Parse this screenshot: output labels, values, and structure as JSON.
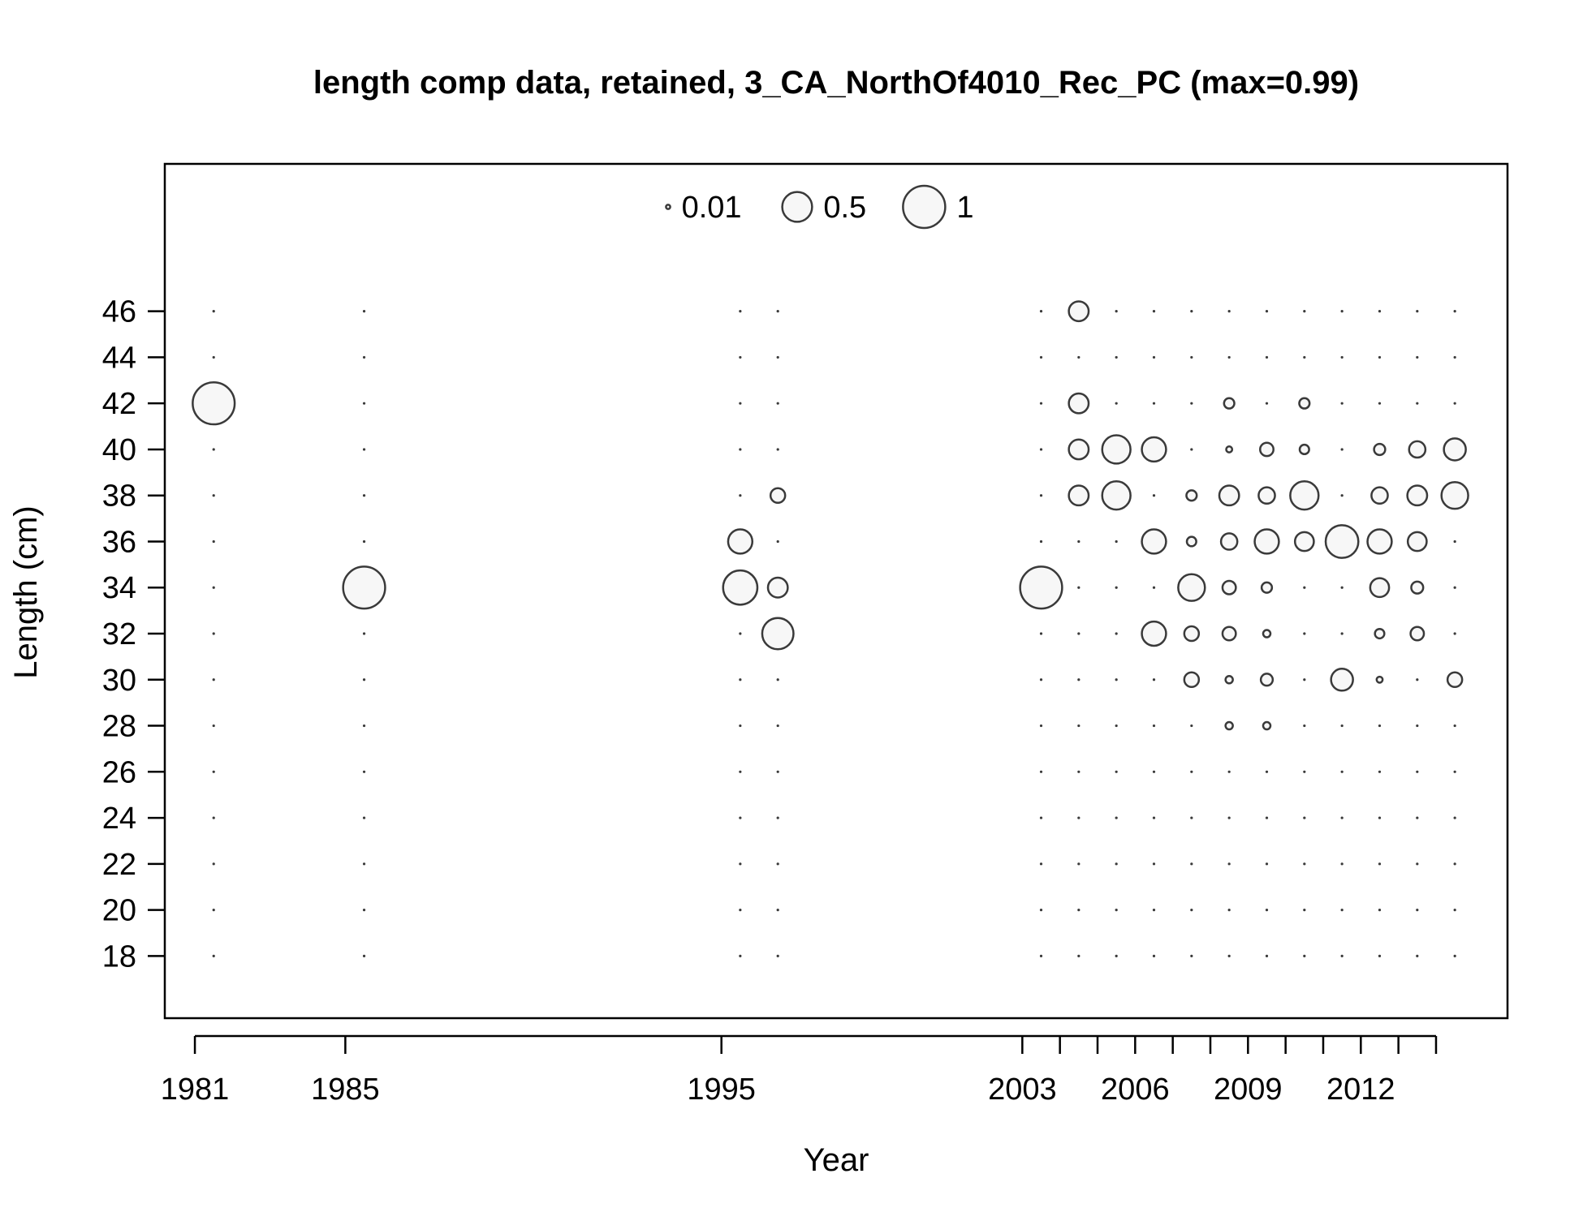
{
  "chart_data": {
    "type": "bubble",
    "title": "length comp data, retained, 3_CA_NorthOf4010_Rec_PC (max=0.99)",
    "xlabel": "Year",
    "ylabel": "Length (cm)",
    "x_tick_labels": [
      "1981",
      "1985",
      "1995",
      "2003",
      "2006",
      "2009",
      "2012"
    ],
    "x_minor_tick_years": [
      1981,
      1985,
      1995,
      2003,
      2004,
      2005,
      2006,
      2007,
      2008,
      2009,
      2010,
      2011,
      2012,
      2013,
      2014
    ],
    "y_tick_labels": [
      "18",
      "20",
      "22",
      "24",
      "26",
      "28",
      "30",
      "32",
      "34",
      "36",
      "38",
      "40",
      "42",
      "44",
      "46"
    ],
    "xlim": [
      1980.2,
      2015.9
    ],
    "ylim": [
      15.3,
      52.4
    ],
    "legend": {
      "position": "top",
      "entries": [
        {
          "label": "0.01",
          "value": 0.01
        },
        {
          "label": "0.5",
          "value": 0.5
        },
        {
          "label": "1",
          "value": 1
        }
      ]
    },
    "bins": [
      18,
      20,
      22,
      24,
      26,
      28,
      30,
      32,
      34,
      36,
      38,
      40,
      42,
      44,
      46
    ],
    "x": [
      1981.5,
      1985.5,
      1995.5,
      1996.5,
      2003.5,
      2004.5,
      2005.5,
      2006.5,
      2007.5,
      2008.5,
      2009.5,
      2010.5,
      2011.5,
      2012.5,
      2013.5,
      2014.5
    ],
    "series": [
      {
        "year": 1981.5,
        "values": {
          "42": 0.99
        }
      },
      {
        "year": 1985.5,
        "values": {
          "34": 0.99
        }
      },
      {
        "year": 1995.5,
        "values": {
          "36": 0.33,
          "34": 0.66
        }
      },
      {
        "year": 1996.5,
        "values": {
          "38": 0.12,
          "34": 0.22,
          "32": 0.55
        }
      },
      {
        "year": 2003.5,
        "values": {
          "34": 0.99
        }
      },
      {
        "year": 2004.5,
        "values": {
          "46": 0.22,
          "42": 0.22,
          "40": 0.22,
          "38": 0.22
        }
      },
      {
        "year": 2005.5,
        "values": {
          "40": 0.45,
          "38": 0.45
        }
      },
      {
        "year": 2006.5,
        "values": {
          "40": 0.33,
          "36": 0.33,
          "32": 0.33
        }
      },
      {
        "year": 2007.5,
        "values": {
          "38": 0.06,
          "36": 0.05,
          "34": 0.4,
          "32": 0.12,
          "30": 0.12
        }
      },
      {
        "year": 2008.5,
        "values": {
          "42": 0.06,
          "40": 0.02,
          "38": 0.22,
          "36": 0.15,
          "34": 0.1,
          "32": 0.1,
          "30": 0.03,
          "28": 0.03
        }
      },
      {
        "year": 2009.5,
        "values": {
          "40": 0.1,
          "38": 0.15,
          "36": 0.33,
          "34": 0.06,
          "32": 0.03,
          "30": 0.08,
          "28": 0.03
        }
      },
      {
        "year": 2010.5,
        "values": {
          "42": 0.06,
          "40": 0.05,
          "38": 0.45,
          "36": 0.2
        }
      },
      {
        "year": 2011.5,
        "values": {
          "36": 0.6,
          "30": 0.27
        }
      },
      {
        "year": 2012.5,
        "values": {
          "40": 0.07,
          "38": 0.15,
          "36": 0.33,
          "34": 0.2,
          "32": 0.05,
          "30": 0.02
        }
      },
      {
        "year": 2013.5,
        "values": {
          "40": 0.15,
          "38": 0.22,
          "36": 0.2,
          "34": 0.08,
          "32": 0.1
        }
      },
      {
        "year": 2014.5,
        "values": {
          "40": 0.27,
          "38": 0.4,
          "30": 0.12
        }
      }
    ],
    "colors": {
      "bubble_stroke": "#3a3a3a",
      "bubble_fill": "#f7f7f7",
      "axis": "#000000"
    }
  }
}
